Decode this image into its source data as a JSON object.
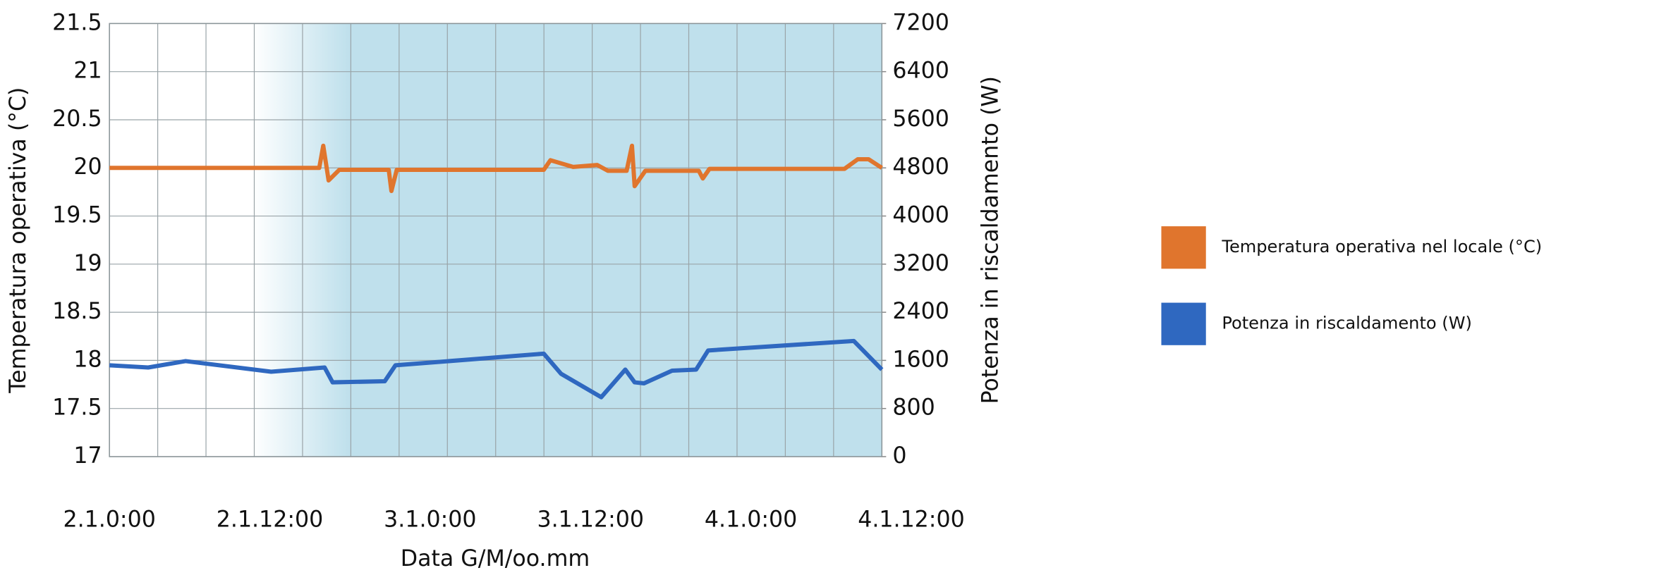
{
  "chart_data": {
    "type": "line",
    "xlabel": "Data G/M/oo.mm",
    "ylabel": "Temperatura operativa (°C)",
    "y2label": "Potenza in riscaldamento (W)",
    "xlim": [
      0,
      57.8
    ],
    "xticks": [
      {
        "value": 0,
        "label": "2.1.0:00"
      },
      {
        "value": 12,
        "label": "2.1.12:00"
      },
      {
        "value": 24,
        "label": "3.1.0:00"
      },
      {
        "value": 36,
        "label": "3.1.12:00"
      },
      {
        "value": 48,
        "label": "4.1.0:00"
      },
      {
        "value": 60,
        "label": "4.1.12:00"
      }
    ],
    "ylim": [
      17,
      21.5
    ],
    "yticks": [
      17,
      17.5,
      18,
      18.5,
      19,
      19.5,
      20,
      20.5,
      21,
      21.5
    ],
    "y2lim": [
      0,
      7200
    ],
    "y2ticks": [
      0,
      800,
      1600,
      2400,
      3200,
      4000,
      4800,
      5600,
      6400,
      7200
    ],
    "grid": true,
    "legend": "right",
    "series": [
      {
        "name": "Temperatura operativa nel locale (°C)",
        "color": "#e0752d",
        "x": [
          0,
          15.7,
          16.0,
          16.4,
          17.2,
          20.9,
          21.1,
          21.5,
          32.5,
          33.0,
          34.7,
          36.5,
          37.3,
          38.7,
          39.1,
          39.3,
          40.1,
          44.1,
          44.4,
          44.9,
          55.0,
          56.0,
          56.8,
          57.8
        ],
        "values": [
          20,
          20,
          20.23,
          19.87,
          19.98,
          19.98,
          19.76,
          19.98,
          19.98,
          20.08,
          20.01,
          20.03,
          19.97,
          19.97,
          20.23,
          19.81,
          19.97,
          19.97,
          19.89,
          19.99,
          19.99,
          20.09,
          20.09,
          20
        ]
      },
      {
        "name": "Potenza in riscaldamento (W)",
        "color": "#2f68c0",
        "axis": "y2",
        "x": [
          0,
          2.9,
          5.7,
          12.1,
          16.1,
          16.7,
          20.6,
          21.4,
          32.5,
          33.8,
          36.8,
          38.6,
          39.3,
          40.0,
          42.1,
          43.9,
          44.8,
          55.7,
          57.8
        ],
        "values": [
          1518,
          1482,
          1588,
          1412,
          1482,
          1235,
          1253,
          1518,
          1712,
          1376,
          988,
          1447,
          1235,
          1218,
          1429,
          1447,
          1765,
          1923,
          1447
        ]
      }
    ]
  }
}
